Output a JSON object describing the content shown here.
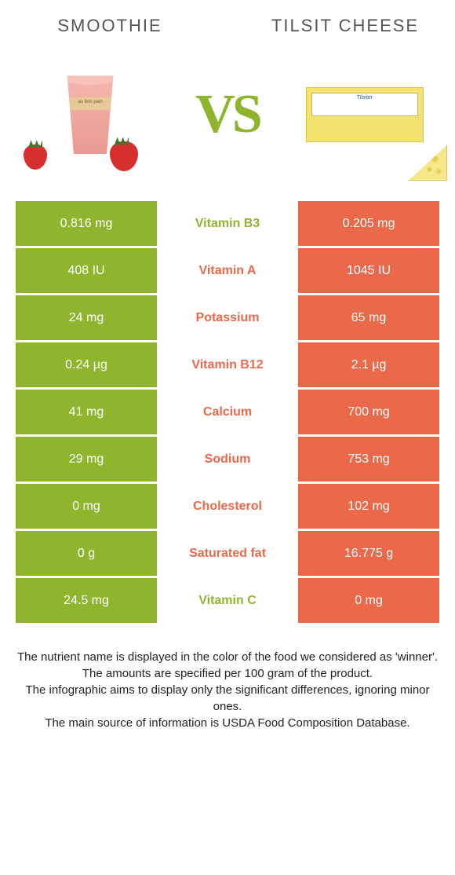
{
  "colors": {
    "left": "#8fb52f",
    "right": "#e9694a",
    "text_on_fill": "#ffffff"
  },
  "header": {
    "left_title": "SMOOTHIE",
    "right_title": "TILSIT CHEESE",
    "vs_text": "VS"
  },
  "smoothie_band": "au bon pain",
  "cheese_label": "Tilsiter",
  "rows": [
    {
      "left": "0.816 mg",
      "label": "Vitamin B3",
      "right": "0.205 mg",
      "winner": "left"
    },
    {
      "left": "408 IU",
      "label": "Vitamin A",
      "right": "1045 IU",
      "winner": "right"
    },
    {
      "left": "24 mg",
      "label": "Potassium",
      "right": "65 mg",
      "winner": "right"
    },
    {
      "left": "0.24 µg",
      "label": "Vitamin B12",
      "right": "2.1 µg",
      "winner": "right"
    },
    {
      "left": "41 mg",
      "label": "Calcium",
      "right": "700 mg",
      "winner": "right"
    },
    {
      "left": "29 mg",
      "label": "Sodium",
      "right": "753 mg",
      "winner": "right"
    },
    {
      "left": "0 mg",
      "label": "Cholesterol",
      "right": "102 mg",
      "winner": "right"
    },
    {
      "left": "0 g",
      "label": "Saturated fat",
      "right": "16.775 g",
      "winner": "right"
    },
    {
      "left": "24.5 mg",
      "label": "Vitamin C",
      "right": "0 mg",
      "winner": "left"
    }
  ],
  "footer": {
    "line1": "The nutrient name is displayed in the color of the food we considered as 'winner'.",
    "line2": "The amounts are specified per 100 gram of the product.",
    "line3": "The infographic aims to display only the significant differences, ignoring minor ones.",
    "line4": "The main source of information is USDA Food Composition Database."
  }
}
